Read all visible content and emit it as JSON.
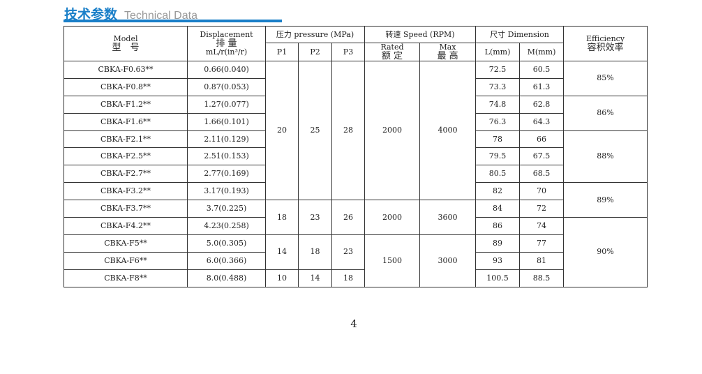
{
  "header": {
    "title_zh": "技术参数",
    "title_en": "Technical Data",
    "accent": "#1a7fc8"
  },
  "columns": {
    "model_en": "Model",
    "model_zh": "型　号",
    "disp_en": "Displacement",
    "disp_zh": "排 量",
    "disp_unit": "mL/r(in³/r)",
    "pressure": "压力 pressure (MPa)",
    "p1": "P1",
    "p2": "P2",
    "p3": "P3",
    "speed": "转速 Speed (RPM)",
    "rated_en": "Rated",
    "rated_zh": "额 定",
    "max_en": "Max",
    "max_zh": "最 高",
    "dimension": "尺寸 Dimension",
    "l": "L(mm)",
    "m": "M(mm)",
    "eff_en": "Efficiency",
    "eff_zh": "容积效率"
  },
  "rows": [
    {
      "model": "CBKA-F0.63**",
      "disp": "0.66(0.040)",
      "L": "72.5",
      "M": "60.5"
    },
    {
      "model": "CBKA-F0.8**",
      "disp": "0.87(0.053)",
      "L": "73.3",
      "M": "61.3"
    },
    {
      "model": "CBKA-F1.2**",
      "disp": "1.27(0.077)",
      "L": "74.8",
      "M": "62.8"
    },
    {
      "model": "CBKA-F1.6**",
      "disp": "1.66(0.101)",
      "L": "76.3",
      "M": "64.3"
    },
    {
      "model": "CBKA-F2.1**",
      "disp": "2.11(0.129)",
      "L": "78",
      "M": "66"
    },
    {
      "model": "CBKA-F2.5**",
      "disp": "2.51(0.153)",
      "L": "79.5",
      "M": "67.5"
    },
    {
      "model": "CBKA-F2.7**",
      "disp": "2.77(0.169)",
      "L": "80.5",
      "M": "68.5"
    },
    {
      "model": "CBKA-F3.2**",
      "disp": "3.17(0.193)",
      "L": "82",
      "M": "70"
    },
    {
      "model": "CBKA-F3.7**",
      "disp": "3.7(0.225)",
      "L": "84",
      "M": "72"
    },
    {
      "model": "CBKA-F4.2**",
      "disp": "4.23(0.258)",
      "L": "86",
      "M": "74"
    },
    {
      "model": "CBKA-F5**",
      "disp": "5.0(0.305)",
      "L": "89",
      "M": "77"
    },
    {
      "model": "CBKA-F6**",
      "disp": "6.0(0.366)",
      "L": "93",
      "M": "81"
    },
    {
      "model": "CBKA-F8**",
      "disp": "8.0(0.488)",
      "L": "100.5",
      "M": "88.5"
    }
  ],
  "pressure_groups": [
    {
      "start": 0,
      "span": 8,
      "p1": "20",
      "p2": "25",
      "p3": "28"
    },
    {
      "start": 8,
      "span": 2,
      "p1": "18",
      "p2": "23",
      "p3": "26"
    },
    {
      "start": 10,
      "span": 2,
      "p1": "14",
      "p2": "18",
      "p3": "23"
    },
    {
      "start": 12,
      "span": 1,
      "p1": "10",
      "p2": "14",
      "p3": "18"
    }
  ],
  "speed_groups": [
    {
      "start": 0,
      "span": 8,
      "rated": "2000",
      "max": "4000"
    },
    {
      "start": 8,
      "span": 2,
      "rated": "2000",
      "max": "3600"
    },
    {
      "start": 10,
      "span": 3,
      "rated": "1500",
      "max": "3000"
    }
  ],
  "eff_groups": [
    {
      "start": 0,
      "span": 2,
      "value": "85%"
    },
    {
      "start": 2,
      "span": 2,
      "value": "86%"
    },
    {
      "start": 4,
      "span": 3,
      "value": "88%"
    },
    {
      "start": 7,
      "span": 2,
      "value": "89%"
    },
    {
      "start": 9,
      "span": 4,
      "value": "90%"
    }
  ],
  "page_number": "4"
}
